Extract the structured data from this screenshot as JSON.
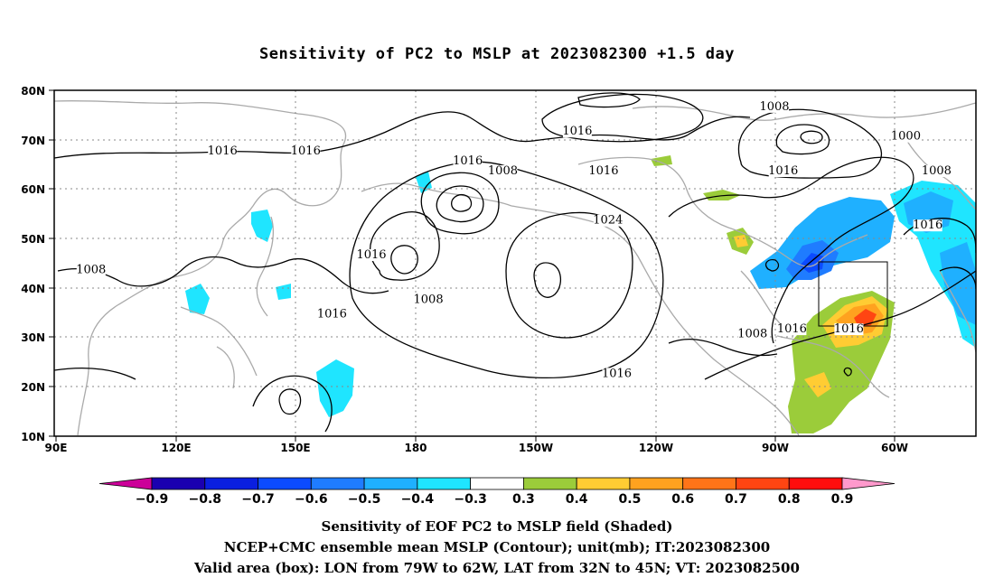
{
  "title": "Sensitivity of PC2 to MSLP at 2023082300 +1.5 day",
  "map": {
    "lon_labels": [
      "90E",
      "120E",
      "150E",
      "180",
      "150W",
      "120W",
      "90W",
      "60W"
    ],
    "lat_labels": [
      "80N",
      "70N",
      "60N",
      "50N",
      "40N",
      "30N",
      "20N",
      "10N"
    ],
    "contour_labels": [
      {
        "text": "1016",
        "lon": 128,
        "lat": 67
      },
      {
        "text": "1016",
        "lon": 147,
        "lat": 67
      },
      {
        "text": "1008",
        "lon": 98,
        "lat": 43
      },
      {
        "text": "1016",
        "lon": 162,
        "lat": 46
      },
      {
        "text": "1016",
        "lon": 153,
        "lat": 34
      },
      {
        "text": "1016",
        "lon": 184,
        "lat": 65
      },
      {
        "text": "1008",
        "lon": 192,
        "lat": 63
      },
      {
        "text": "1008",
        "lon": 175,
        "lat": 37
      },
      {
        "text": "1016",
        "lon": 209,
        "lat": 71
      },
      {
        "text": "1016",
        "lon": 215,
        "lat": 63
      },
      {
        "text": "1024",
        "lon": 216,
        "lat": 53
      },
      {
        "text": "1016",
        "lon": 218,
        "lat": 22
      },
      {
        "text": "1008",
        "lon": 254,
        "lat": 76
      },
      {
        "text": "1016",
        "lon": 256,
        "lat": 63
      },
      {
        "text": "1000",
        "lon": 284,
        "lat": 70
      },
      {
        "text": "1008",
        "lon": 291,
        "lat": 63
      },
      {
        "text": "1016",
        "lon": 289,
        "lat": 52
      },
      {
        "text": "1008",
        "lon": 249,
        "lat": 30
      },
      {
        "text": "1016",
        "lon": 258,
        "lat": 31
      },
      {
        "text": "1016",
        "lon": 271,
        "lat": 31
      }
    ],
    "valid_box": {
      "lon_min": -79,
      "lon_max": -62,
      "lat_min": 32,
      "lat_max": 45
    }
  },
  "colorbar": {
    "labels": [
      "−0.9",
      "−0.8",
      "−0.7",
      "−0.6",
      "−0.5",
      "−0.4",
      "−0.3",
      "0.3",
      "0.4",
      "0.5",
      "0.6",
      "0.7",
      "0.8",
      "0.9"
    ],
    "colors": [
      "#1a00b0",
      "#0a1fe0",
      "#0c4bff",
      "#1f7cff",
      "#1fb0ff",
      "#1fe5ff",
      "#ffffff",
      "#9bcc3a",
      "#ffcc33",
      "#ffa21f",
      "#ff7418",
      "#ff4512",
      "#ff0d0d"
    ],
    "low_color": "#cc0099",
    "high_color": "#ff99cc"
  },
  "captions": {
    "line1": "Sensitivity of EOF PC2 to MSLP field (Shaded)",
    "line2": "NCEP+CMC ensemble mean MSLP (Contour); unit(mb); IT:2023082300",
    "line3": "Valid area (box): LON from 79W to 62W, LAT from 32N to 45N; VT: 2023082500"
  }
}
